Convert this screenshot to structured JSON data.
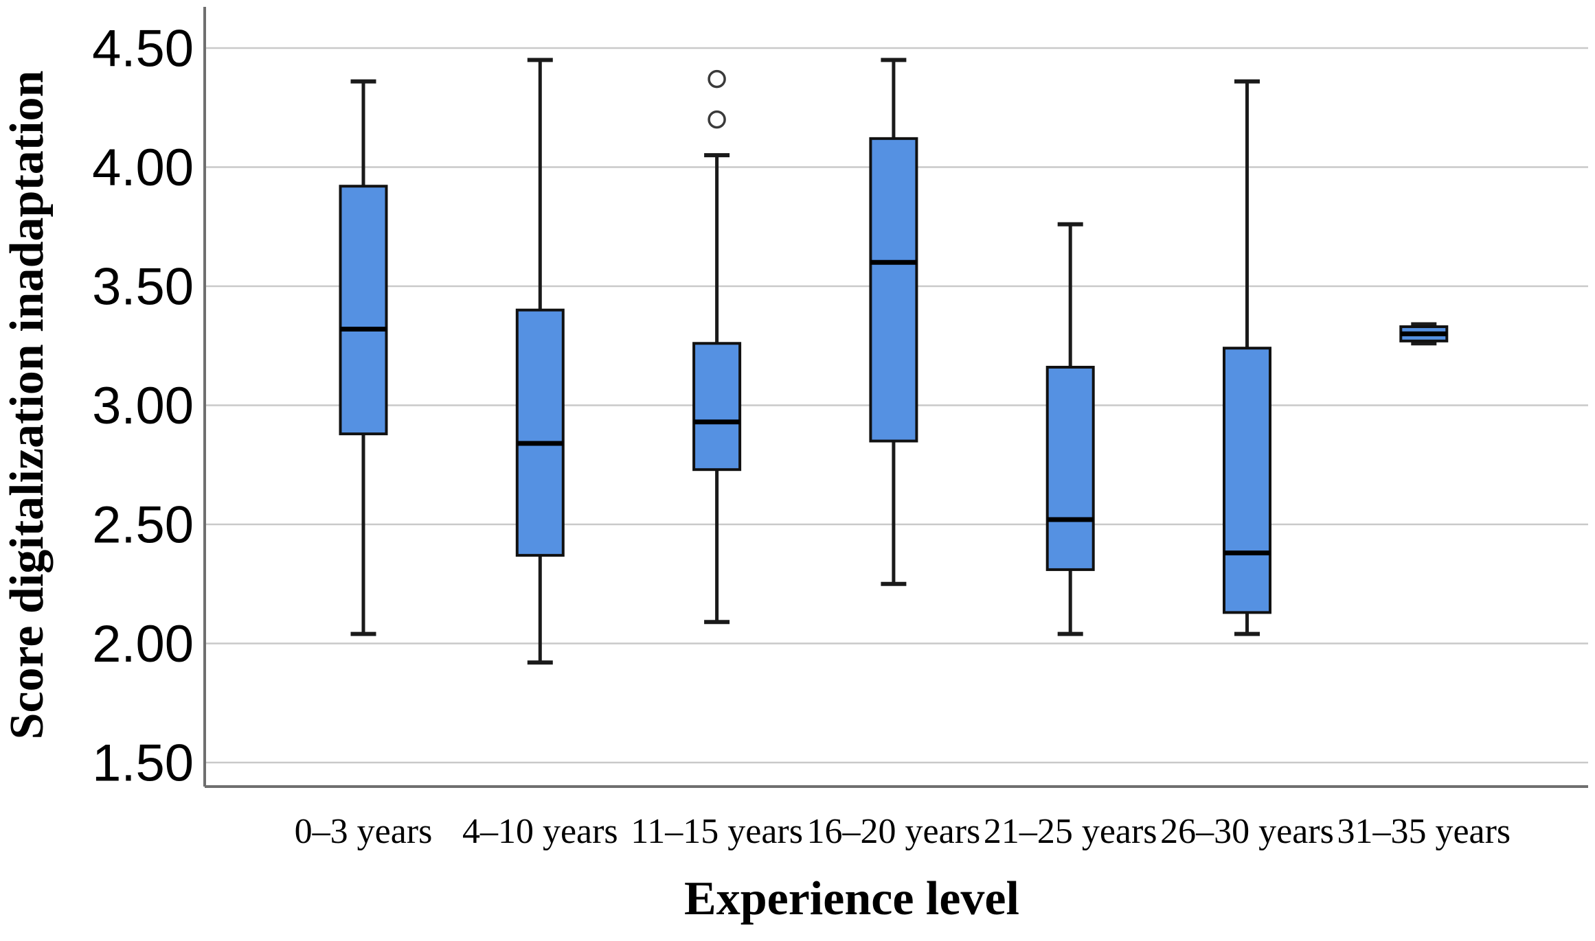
{
  "figure": {
    "background": "#ffffff",
    "description": "Box plot of score digitalization inadaptation by experience level"
  },
  "chart_data": {
    "type": "boxplot",
    "title": "",
    "xlabel": "Experience level",
    "ylabel": "Score digitalization inadaptation",
    "grid": true,
    "legend": "none",
    "ylim": [
      1.4,
      4.67
    ],
    "y_ticks": [
      {
        "label": "4.50",
        "value": 4.5
      },
      {
        "label": "4.00",
        "value": 4.0
      },
      {
        "label": "3.50",
        "value": 3.5
      },
      {
        "label": "3.00",
        "value": 3.0
      },
      {
        "label": "2.50",
        "value": 2.5
      },
      {
        "label": "2.00",
        "value": 2.0
      },
      {
        "label": "1.50",
        "value": 1.5
      }
    ],
    "categories": [
      "0–3 years",
      "4–10 years",
      "11–15 years",
      "16–20 years",
      "21–25 years",
      "26–30 years",
      "31–35 years"
    ],
    "series": [
      {
        "category": "0–3 years",
        "min": 2.04,
        "q1": 2.88,
        "median": 3.32,
        "q3": 3.92,
        "max": 4.36,
        "outliers": []
      },
      {
        "category": "4–10 years",
        "min": 1.92,
        "q1": 2.37,
        "median": 2.84,
        "q3": 3.4,
        "max": 4.45,
        "outliers": []
      },
      {
        "category": "11–15 years",
        "min": 2.09,
        "q1": 2.73,
        "median": 2.93,
        "q3": 3.26,
        "max": 4.05,
        "outliers": [
          4.2,
          4.37
        ]
      },
      {
        "category": "16–20 years",
        "min": 2.25,
        "q1": 2.85,
        "median": 3.6,
        "q3": 4.12,
        "max": 4.45,
        "outliers": []
      },
      {
        "category": "21–25 years",
        "min": 2.04,
        "q1": 2.31,
        "median": 2.52,
        "q3": 3.16,
        "max": 3.76,
        "outliers": []
      },
      {
        "category": "26–30 years",
        "min": 2.04,
        "q1": 2.13,
        "median": 2.38,
        "q3": 3.24,
        "max": 4.36,
        "outliers": []
      },
      {
        "category": "31–35 years",
        "min": 3.26,
        "q1": 3.27,
        "median": 3.3,
        "q3": 3.33,
        "max": 3.34,
        "outliers": []
      }
    ],
    "colors": {
      "box_fill": "#5591E2",
      "box_border": "#111111",
      "median_line": "#000000",
      "whisker": "#1a1a1a",
      "outlier_stroke": "#3a3a3a",
      "gridline": "#c9c9c9",
      "axis_line": "#6f6f6f",
      "text": "#000000"
    }
  }
}
